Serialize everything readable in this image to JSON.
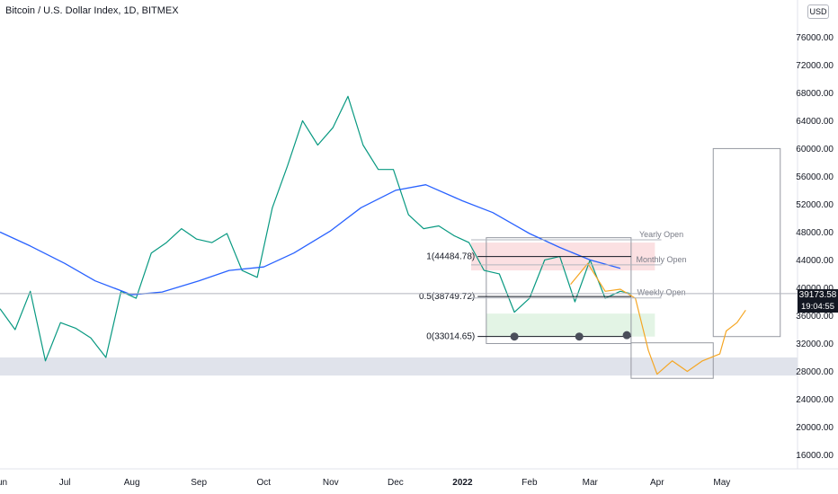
{
  "header": {
    "symbol_title": "Bitcoin / U.S. Dollar Index, 1D, BITMEX",
    "currency_button": "USD"
  },
  "price_axis": {
    "current_price": "39173.58",
    "countdown": "19:04:55"
  },
  "chart_data": {
    "type": "line",
    "title": "Bitcoin / U.S. Dollar Index, 1D, BITMEX",
    "xlabel": "",
    "ylabel": "",
    "x_ticks": [
      {
        "label": "Jun",
        "d": "2021-06-01"
      },
      {
        "label": "Jul",
        "d": "2021-07-01"
      },
      {
        "label": "Aug",
        "d": "2021-08-01"
      },
      {
        "label": "Sep",
        "d": "2021-09-01"
      },
      {
        "label": "Oct",
        "d": "2021-10-01"
      },
      {
        "label": "Nov",
        "d": "2021-11-01"
      },
      {
        "label": "Dec",
        "d": "2021-12-01"
      },
      {
        "label": "2022",
        "d": "2022-01-01"
      },
      {
        "label": "Feb",
        "d": "2022-02-01"
      },
      {
        "label": "Mar",
        "d": "2022-03-01"
      },
      {
        "label": "Apr",
        "d": "2022-04-01"
      },
      {
        "label": "May",
        "d": "2022-05-01"
      }
    ],
    "y_ticks": [
      "16000.00",
      "20000.00",
      "24000.00",
      "28000.00",
      "32000.00",
      "36000.00",
      "40000.00",
      "44000.00",
      "48000.00",
      "52000.00",
      "56000.00",
      "60000.00",
      "64000.00",
      "68000.00",
      "72000.00",
      "76000.00"
    ],
    "xlim": [
      "2021-06-01",
      "2022-06-05"
    ],
    "ylim": [
      14000,
      78500
    ],
    "grid": false,
    "series": [
      {
        "role": "price",
        "color": "#089981",
        "points": [
          [
            "2021-06-01",
            37000
          ],
          [
            "2021-06-08",
            34000
          ],
          [
            "2021-06-15",
            39500
          ],
          [
            "2021-06-22",
            29500
          ],
          [
            "2021-06-29",
            35000
          ],
          [
            "2021-07-06",
            34200
          ],
          [
            "2021-07-13",
            32800
          ],
          [
            "2021-07-20",
            30000
          ],
          [
            "2021-07-27",
            39500
          ],
          [
            "2021-08-03",
            38500
          ],
          [
            "2021-08-10",
            45000
          ],
          [
            "2021-08-17",
            46500
          ],
          [
            "2021-08-24",
            48500
          ],
          [
            "2021-08-31",
            47000
          ],
          [
            "2021-09-07",
            46500
          ],
          [
            "2021-09-14",
            47800
          ],
          [
            "2021-09-21",
            42500
          ],
          [
            "2021-09-28",
            41500
          ],
          [
            "2021-10-05",
            51500
          ],
          [
            "2021-10-12",
            57500
          ],
          [
            "2021-10-19",
            64000
          ],
          [
            "2021-10-26",
            60500
          ],
          [
            "2021-11-02",
            63000
          ],
          [
            "2021-11-09",
            67500
          ],
          [
            "2021-11-16",
            60500
          ],
          [
            "2021-11-23",
            57000
          ],
          [
            "2021-11-30",
            57000
          ],
          [
            "2021-12-07",
            50500
          ],
          [
            "2021-12-14",
            48500
          ],
          [
            "2021-12-21",
            48900
          ],
          [
            "2021-12-28",
            47500
          ],
          [
            "2022-01-04",
            46500
          ],
          [
            "2022-01-11",
            42500
          ],
          [
            "2022-01-18",
            42000
          ],
          [
            "2022-01-25",
            36500
          ],
          [
            "2022-02-01",
            38500
          ],
          [
            "2022-02-08",
            44000
          ],
          [
            "2022-02-15",
            44500
          ],
          [
            "2022-02-22",
            38000
          ],
          [
            "2022-03-01",
            44000
          ],
          [
            "2022-03-08",
            38500
          ],
          [
            "2022-03-15",
            39500
          ],
          [
            "2022-03-20",
            39173
          ]
        ]
      },
      {
        "role": "moving-average",
        "color": "#2962ff",
        "points": [
          [
            "2021-06-01",
            48000
          ],
          [
            "2021-06-15",
            46000
          ],
          [
            "2021-07-01",
            43500
          ],
          [
            "2021-07-15",
            41000
          ],
          [
            "2021-08-01",
            39000
          ],
          [
            "2021-08-15",
            39400
          ],
          [
            "2021-09-01",
            41000
          ],
          [
            "2021-09-15",
            42500
          ],
          [
            "2021-10-01",
            43000
          ],
          [
            "2021-10-15",
            45000
          ],
          [
            "2021-11-01",
            48200
          ],
          [
            "2021-11-15",
            51500
          ],
          [
            "2021-12-01",
            54000
          ],
          [
            "2021-12-15",
            54800
          ],
          [
            "2022-01-01",
            52500
          ],
          [
            "2022-01-15",
            50800
          ],
          [
            "2022-02-01",
            47800
          ],
          [
            "2022-02-15",
            45800
          ],
          [
            "2022-03-01",
            44000
          ],
          [
            "2022-03-15",
            42800
          ]
        ]
      },
      {
        "role": "projection",
        "color": "#f5a623",
        "points": [
          [
            "2022-02-20",
            40500
          ],
          [
            "2022-02-28",
            43500
          ],
          [
            "2022-03-08",
            39500
          ],
          [
            "2022-03-15",
            39800
          ],
          [
            "2022-03-22",
            38500
          ],
          [
            "2022-03-28",
            31000
          ],
          [
            "2022-04-01",
            27600
          ],
          [
            "2022-04-08",
            29500
          ],
          [
            "2022-04-15",
            28000
          ],
          [
            "2022-04-22",
            29500
          ],
          [
            "2022-04-30",
            30500
          ],
          [
            "2022-05-03",
            33800
          ],
          [
            "2022-05-08",
            35000
          ],
          [
            "2022-05-12",
            36800
          ]
        ]
      }
    ],
    "annotations": [
      {
        "text": "1(44484.78)",
        "y": 44484.78
      },
      {
        "text": "0.5(38749.72)",
        "y": 38749.72
      },
      {
        "text": "0(33014.65)",
        "y": 33014.65
      },
      {
        "text": "Yearly Open",
        "y": 46900
      },
      {
        "text": "Monthly Open",
        "y": 43300
      },
      {
        "text": "Weekly Open",
        "y": 38550
      }
    ],
    "zones": [
      {
        "role": "support-band",
        "y": [
          27400,
          30000
        ],
        "color": "#e0e3eb"
      },
      {
        "role": "resistance-zone",
        "x": [
          "2022-01-05",
          "2022-03-31"
        ],
        "y": [
          42500,
          46500
        ],
        "color": "#fbe0e2"
      },
      {
        "role": "demand-zone",
        "x": [
          "2022-01-12",
          "2022-03-31"
        ],
        "y": [
          33000,
          36300
        ],
        "color": "#e3f4e5"
      },
      {
        "role": "range-box",
        "x": [
          "2022-01-12",
          "2022-03-20"
        ],
        "y": [
          32000,
          47200
        ]
      },
      {
        "role": "drop-box",
        "x": [
          "2022-03-20",
          "2022-04-27"
        ],
        "y": [
          27000,
          32100
        ]
      },
      {
        "role": "target-box",
        "x": [
          "2022-04-27",
          "2022-05-28"
        ],
        "y": [
          33000,
          60000
        ]
      }
    ],
    "markers": [
      {
        "d": "2022-01-25",
        "y": 33000
      },
      {
        "d": "2022-02-24",
        "y": 33000
      },
      {
        "d": "2022-03-18",
        "y": 33200
      }
    ]
  }
}
